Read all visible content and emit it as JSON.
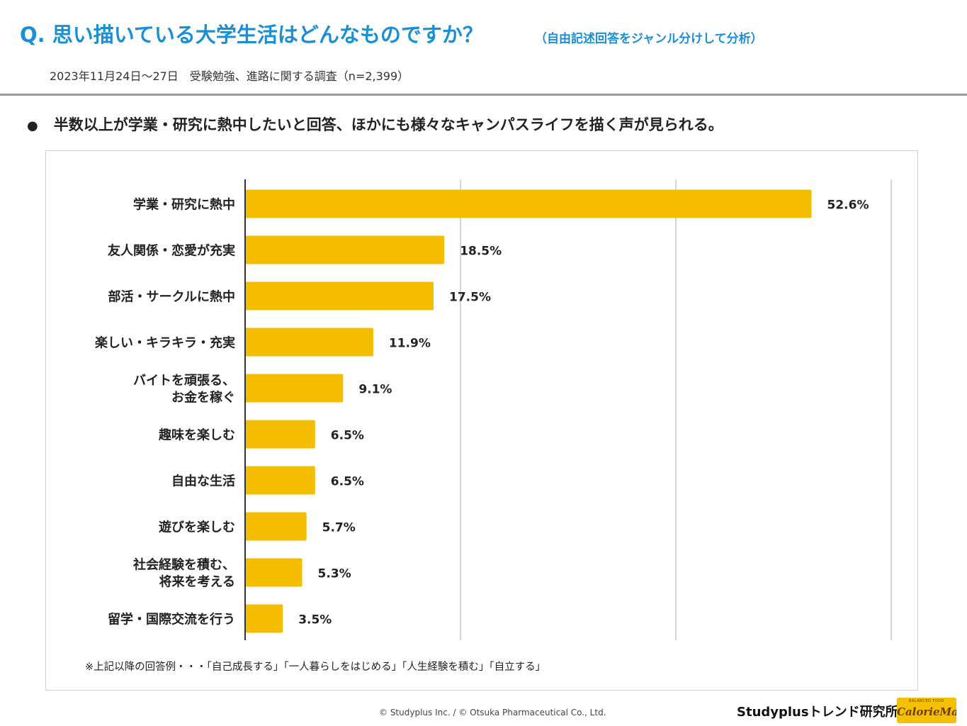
{
  "header": {
    "question": "Q. 思い描いている大学生活はどんなものですか？",
    "question_note": "（自由記述回答をジャンル分けして分析）",
    "survey_note": "2023年11月24日～27日　受験勉強、進路に関する調査（n=2,399）"
  },
  "headline": {
    "bullet": "●",
    "text": "半数以上が学業・研究に熱中したいと回答、ほかにも様々なキャンパスライフを描く声が見られる。"
  },
  "chart_data": {
    "type": "bar",
    "orientation": "horizontal",
    "title": "",
    "xlabel": "",
    "ylabel": "",
    "xlim": [
      0,
      60
    ],
    "grid": true,
    "categories": [
      [
        "学業・研究に熱中"
      ],
      [
        "友人関係・恋愛が充実"
      ],
      [
        "部活・サークルに熱中"
      ],
      [
        "楽しい・キラキラ・充実"
      ],
      [
        "バイトを頑張る、",
        "お金を稼ぐ"
      ],
      [
        "趣味を楽しむ"
      ],
      [
        "自由な生活"
      ],
      [
        "遊びを楽しむ"
      ],
      [
        "社会経験を積む、",
        "将来を考える"
      ],
      [
        "留学・国際交流を行う"
      ]
    ],
    "values": [
      52.6,
      18.5,
      17.5,
      11.9,
      9.1,
      6.5,
      6.5,
      5.7,
      5.3,
      3.5
    ],
    "value_labels": [
      "52.6%",
      "18.5%",
      "17.5%",
      "11.9%",
      "9.1%",
      "6.5%",
      "6.5%",
      "5.7%",
      "5.3%",
      "3.5%"
    ],
    "bar_color": "#f5bd00"
  },
  "footnote": "※上記以降の回答例・・・「自己成長する」「一人暮らしをはじめる」「人生経験を積む」「自立する」",
  "footer": {
    "copyright": "© Studyplus Inc. / © Otsuka Pharmaceutical Co., Ltd.",
    "brand": "Studyplusトレンド研究所",
    "logo_tagline": "BALANCED FOOD",
    "logo_name": "CalorieMate"
  }
}
